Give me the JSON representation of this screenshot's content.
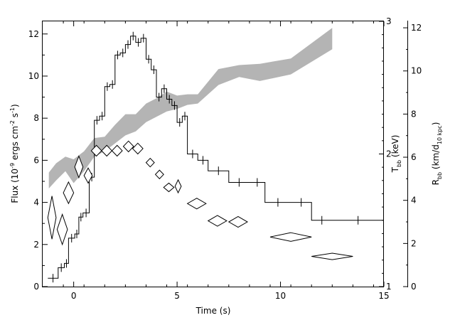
{
  "chart_data": {
    "type": "line",
    "xlabel": "Time (s)",
    "ylabel_left": {
      "main": "Flux (10",
      "sup1": "-9",
      "mid1": " ergs cm",
      "sup2": "-2",
      "mid2": " s",
      "sup3": "-1",
      "end": ")"
    },
    "ylabel_right1": {
      "main": "T",
      "sub": "bb",
      "end": " (keV)"
    },
    "ylabel_right2": {
      "main": "R",
      "sub": "bb",
      "mid": " (km/d",
      "sub2": "10 kpc",
      "end": ")"
    },
    "xlim": [
      -1.5,
      15
    ],
    "ylim_flux": [
      0,
      12.6
    ],
    "ylim_tbb": [
      1,
      3
    ],
    "ylim_rbb": [
      0,
      12.3
    ],
    "xticks": [
      0,
      5,
      10,
      15
    ],
    "yticks_flux": [
      0,
      2,
      4,
      6,
      8,
      10,
      12
    ],
    "yticks_tbb": [
      1,
      2,
      3
    ],
    "yticks_rbb": [
      0,
      2,
      4,
      6,
      8,
      10,
      12
    ],
    "series": [
      {
        "type": "step",
        "bins": [
          {
            "x0": -1.25,
            "x1": -0.75,
            "y": 0.4
          },
          {
            "x0": -0.75,
            "x1": -0.45,
            "y": 0.9
          },
          {
            "x0": -0.45,
            "x1": -0.25,
            "y": 1.1
          },
          {
            "x0": -0.25,
            "x1": 0.05,
            "y": 2.3
          },
          {
            "x0": 0.05,
            "x1": 0.25,
            "y": 2.5
          },
          {
            "x0": 0.25,
            "x1": 0.45,
            "y": 3.3
          },
          {
            "x0": 0.45,
            "x1": 0.75,
            "y": 3.5
          },
          {
            "x0": 0.75,
            "x1": 1.0,
            "y": 5.2
          },
          {
            "x0": 1.0,
            "x1": 1.25,
            "y": 7.9
          },
          {
            "x0": 1.25,
            "x1": 1.5,
            "y": 8.1
          },
          {
            "x0": 1.5,
            "x1": 1.75,
            "y": 9.5
          },
          {
            "x0": 1.75,
            "x1": 2.0,
            "y": 9.6
          },
          {
            "x0": 2.0,
            "x1": 2.25,
            "y": 11.0
          },
          {
            "x0": 2.25,
            "x1": 2.5,
            "y": 11.1
          },
          {
            "x0": 2.5,
            "x1": 2.75,
            "y": 11.5
          },
          {
            "x0": 2.75,
            "x1": 3.0,
            "y": 11.9
          },
          {
            "x0": 3.0,
            "x1": 3.25,
            "y": 11.6
          },
          {
            "x0": 3.25,
            "x1": 3.5,
            "y": 11.8
          },
          {
            "x0": 3.5,
            "x1": 3.75,
            "y": 10.8
          },
          {
            "x0": 3.75,
            "x1": 4.0,
            "y": 10.3
          },
          {
            "x0": 4.0,
            "x1": 4.25,
            "y": 9.0
          },
          {
            "x0": 4.25,
            "x1": 4.5,
            "y": 9.4
          },
          {
            "x0": 4.5,
            "x1": 4.75,
            "y": 8.9
          },
          {
            "x0": 4.75,
            "x1": 5.0,
            "y": 8.6
          },
          {
            "x0": 5.0,
            "x1": 5.25,
            "y": 7.8
          },
          {
            "x0": 5.25,
            "x1": 5.5,
            "y": 8.1
          },
          {
            "x0": 5.5,
            "x1": 6.0,
            "y": 6.3
          },
          {
            "x0": 6.0,
            "x1": 6.5,
            "y": 6.0
          },
          {
            "x0": 6.5,
            "x1": 7.5,
            "y": 5.5
          },
          {
            "x0": 7.5,
            "x1": 8.5,
            "y": 4.95
          },
          {
            "x0": 8.5,
            "x1": 9.25,
            "y": 4.95
          },
          {
            "x0": 9.25,
            "x1": 10.5,
            "y": 4.0
          },
          {
            "x0": 10.5,
            "x1": 11.5,
            "y": 4.0
          },
          {
            "x0": 11.5,
            "x1": 12.5,
            "y": 3.15
          },
          {
            "x0": 12.5,
            "x1": 15.0,
            "y": 3.15
          }
        ]
      },
      {
        "type": "band",
        "axis": "tbb",
        "points": [
          {
            "x": -1.2,
            "lo": 1.74,
            "hi": 1.86
          },
          {
            "x": -0.85,
            "lo": 1.8,
            "hi": 1.93
          },
          {
            "x": -0.4,
            "lo": 1.87,
            "hi": 1.98
          },
          {
            "x": 0.0,
            "lo": 1.78,
            "hi": 1.96
          },
          {
            "x": 0.5,
            "lo": 1.87,
            "hi": 2.02
          },
          {
            "x": 1.0,
            "lo": 1.98,
            "hi": 2.12
          },
          {
            "x": 1.5,
            "lo": 2.02,
            "hi": 2.13
          },
          {
            "x": 2.0,
            "lo": 2.08,
            "hi": 2.22
          },
          {
            "x": 2.5,
            "lo": 2.14,
            "hi": 2.3
          },
          {
            "x": 3.0,
            "lo": 2.17,
            "hi": 2.3
          },
          {
            "x": 3.5,
            "lo": 2.24,
            "hi": 2.38
          },
          {
            "x": 4.0,
            "lo": 2.28,
            "hi": 2.42
          },
          {
            "x": 4.5,
            "lo": 2.32,
            "hi": 2.47
          },
          {
            "x": 5.0,
            "lo": 2.34,
            "hi": 2.44
          },
          {
            "x": 5.5,
            "lo": 2.37,
            "hi": 2.45
          },
          {
            "x": 6.0,
            "lo": 2.38,
            "hi": 2.45
          },
          {
            "x": 7.0,
            "lo": 2.52,
            "hi": 2.64
          },
          {
            "x": 8.0,
            "lo": 2.58,
            "hi": 2.67
          },
          {
            "x": 9.0,
            "lo": 2.55,
            "hi": 2.68
          },
          {
            "x": 10.5,
            "lo": 2.6,
            "hi": 2.72
          },
          {
            "x": 12.5,
            "lo": 2.79,
            "hi": 2.95
          }
        ]
      },
      {
        "type": "diamond",
        "axis": "rbb",
        "points": [
          {
            "x": -1.05,
            "y": 3.2,
            "dx": 0.2,
            "dy": 1.0
          },
          {
            "x": -0.55,
            "y": 2.65,
            "dx": 0.25,
            "dy": 0.7
          },
          {
            "x": -0.25,
            "y": 4.35,
            "dx": 0.25,
            "dy": 0.5
          },
          {
            "x": 0.25,
            "y": 5.55,
            "dx": 0.2,
            "dy": 0.5
          },
          {
            "x": 0.7,
            "y": 5.15,
            "dx": 0.2,
            "dy": 0.35
          },
          {
            "x": 1.1,
            "y": 6.3,
            "dx": 0.25,
            "dy": 0.25
          },
          {
            "x": 1.6,
            "y": 6.3,
            "dx": 0.25,
            "dy": 0.25
          },
          {
            "x": 2.1,
            "y": 6.3,
            "dx": 0.25,
            "dy": 0.25
          },
          {
            "x": 2.65,
            "y": 6.5,
            "dx": 0.25,
            "dy": 0.25
          },
          {
            "x": 3.1,
            "y": 6.4,
            "dx": 0.25,
            "dy": 0.25
          },
          {
            "x": 3.7,
            "y": 5.75,
            "dx": 0.2,
            "dy": 0.2
          },
          {
            "x": 4.15,
            "y": 5.2,
            "dx": 0.2,
            "dy": 0.2
          },
          {
            "x": 4.6,
            "y": 4.6,
            "dx": 0.25,
            "dy": 0.2
          },
          {
            "x": 5.05,
            "y": 4.65,
            "dx": 0.15,
            "dy": 0.3
          },
          {
            "x": 5.95,
            "y": 3.85,
            "dx": 0.45,
            "dy": 0.25
          },
          {
            "x": 6.95,
            "y": 3.05,
            "dx": 0.45,
            "dy": 0.25
          },
          {
            "x": 7.95,
            "y": 3.0,
            "dx": 0.45,
            "dy": 0.25
          },
          {
            "x": 10.5,
            "y": 2.3,
            "dx": 1.0,
            "dy": 0.2
          },
          {
            "x": 12.5,
            "y": 1.4,
            "dx": 1.0,
            "dy": 0.15
          }
        ]
      }
    ]
  }
}
